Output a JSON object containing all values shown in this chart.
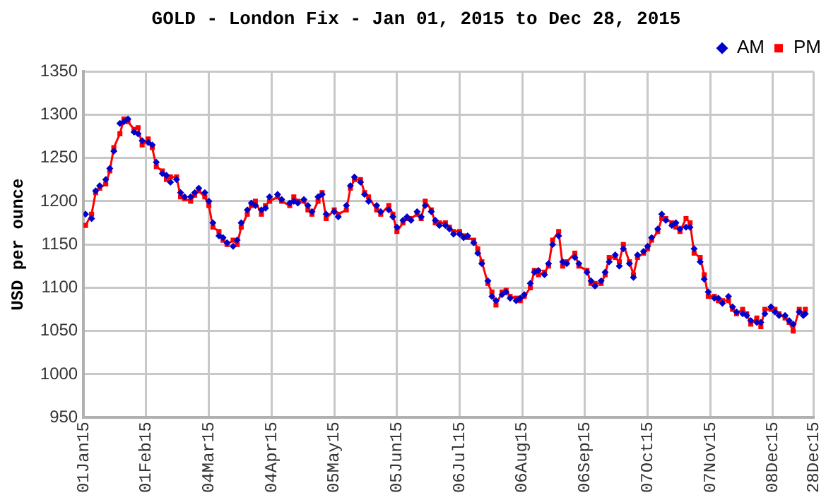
{
  "chart_data": {
    "type": "line",
    "title": "GOLD - London Fix - Jan 01, 2015 to Dec 28, 2015",
    "ylabel": "USD per ounce",
    "x": [
      "2015-01-02",
      "2015-01-05",
      "2015-01-07",
      "2015-01-09",
      "2015-01-12",
      "2015-01-14",
      "2015-01-16",
      "2015-01-19",
      "2015-01-21",
      "2015-01-23",
      "2015-01-26",
      "2015-01-28",
      "2015-01-30",
      "2015-02-02",
      "2015-02-04",
      "2015-02-06",
      "2015-02-09",
      "2015-02-11",
      "2015-02-13",
      "2015-02-16",
      "2015-02-18",
      "2015-02-20",
      "2015-02-23",
      "2015-02-25",
      "2015-02-27",
      "2015-03-02",
      "2015-03-04",
      "2015-03-06",
      "2015-03-09",
      "2015-03-11",
      "2015-03-13",
      "2015-03-16",
      "2015-03-18",
      "2015-03-20",
      "2015-03-23",
      "2015-03-25",
      "2015-03-27",
      "2015-03-30",
      "2015-04-01",
      "2015-04-03",
      "2015-04-07",
      "2015-04-09",
      "2015-04-13",
      "2015-04-15",
      "2015-04-17",
      "2015-04-20",
      "2015-04-22",
      "2015-04-24",
      "2015-04-27",
      "2015-04-29",
      "2015-05-01",
      "2015-05-05",
      "2015-05-07",
      "2015-05-11",
      "2015-05-13",
      "2015-05-15",
      "2015-05-18",
      "2015-05-20",
      "2015-05-22",
      "2015-05-26",
      "2015-05-28",
      "2015-06-01",
      "2015-06-03",
      "2015-06-05",
      "2015-06-08",
      "2015-06-10",
      "2015-06-12",
      "2015-06-15",
      "2015-06-17",
      "2015-06-19",
      "2015-06-22",
      "2015-06-24",
      "2015-06-26",
      "2015-06-29",
      "2015-07-01",
      "2015-07-03",
      "2015-07-06",
      "2015-07-08",
      "2015-07-10",
      "2015-07-13",
      "2015-07-15",
      "2015-07-17",
      "2015-07-20",
      "2015-07-22",
      "2015-07-24",
      "2015-07-27",
      "2015-07-29",
      "2015-07-31",
      "2015-08-03",
      "2015-08-05",
      "2015-08-07",
      "2015-08-10",
      "2015-08-12",
      "2015-08-14",
      "2015-08-17",
      "2015-08-19",
      "2015-08-21",
      "2015-08-24",
      "2015-08-26",
      "2015-08-28",
      "2015-09-01",
      "2015-09-03",
      "2015-09-07",
      "2015-09-09",
      "2015-09-11",
      "2015-09-14",
      "2015-09-16",
      "2015-09-18",
      "2015-09-21",
      "2015-09-23",
      "2015-09-25",
      "2015-09-28",
      "2015-09-30",
      "2015-10-02",
      "2015-10-05",
      "2015-10-07",
      "2015-10-09",
      "2015-10-12",
      "2015-10-14",
      "2015-10-16",
      "2015-10-19",
      "2015-10-21",
      "2015-10-23",
      "2015-10-26",
      "2015-10-28",
      "2015-10-30",
      "2015-11-02",
      "2015-11-04",
      "2015-11-06",
      "2015-11-09",
      "2015-11-11",
      "2015-11-13",
      "2015-11-16",
      "2015-11-18",
      "2015-11-20",
      "2015-11-23",
      "2015-11-25",
      "2015-11-27",
      "2015-11-30",
      "2015-12-02",
      "2015-12-04",
      "2015-12-07",
      "2015-12-09",
      "2015-12-11",
      "2015-12-14",
      "2015-12-16",
      "2015-12-18",
      "2015-12-21",
      "2015-12-23",
      "2015-12-24"
    ],
    "series": [
      {
        "name": "AM",
        "type": "scatter",
        "marker": "diamond",
        "color": "#0000cc",
        "values": [
          1185,
          1180,
          1212,
          1218,
          1225,
          1238,
          1258,
          1290,
          1292,
          1295,
          1280,
          1278,
          1270,
          1268,
          1265,
          1245,
          1232,
          1230,
          1222,
          1225,
          1210,
          1205,
          1205,
          1210,
          1215,
          1210,
          1200,
          1175,
          1160,
          1158,
          1152,
          1148,
          1155,
          1175,
          1190,
          1198,
          1195,
          1190,
          1192,
          1205,
          1208,
          1202,
          1198,
          1200,
          1198,
          1202,
          1195,
          1188,
          1205,
          1208,
          1185,
          1188,
          1182,
          1195,
          1218,
          1228,
          1222,
          1208,
          1200,
          1195,
          1188,
          1190,
          1182,
          1170,
          1178,
          1182,
          1178,
          1188,
          1182,
          1195,
          1188,
          1178,
          1172,
          1172,
          1168,
          1162,
          1162,
          1158,
          1160,
          1152,
          1140,
          1128,
          1108,
          1090,
          1085,
          1092,
          1095,
          1088,
          1085,
          1088,
          1092,
          1105,
          1118,
          1120,
          1115,
          1128,
          1150,
          1160,
          1130,
          1128,
          1135,
          1128,
          1118,
          1108,
          1102,
          1108,
          1118,
          1130,
          1138,
          1125,
          1145,
          1128,
          1112,
          1138,
          1142,
          1148,
          1158,
          1168,
          1185,
          1178,
          1172,
          1175,
          1168,
          1170,
          1170,
          1145,
          1130,
          1110,
          1095,
          1088,
          1088,
          1082,
          1090,
          1078,
          1072,
          1070,
          1068,
          1062,
          1060,
          1060,
          1070,
          1078,
          1072,
          1068,
          1068,
          1062,
          1058,
          1072,
          1068,
          1070
        ]
      },
      {
        "name": "PM",
        "type": "line",
        "marker": "square",
        "line_style": "solid",
        "color": "#ff0000",
        "values": [
          1172,
          1185,
          1210,
          1215,
          1220,
          1235,
          1262,
          1278,
          1295,
          1292,
          1283,
          1285,
          1265,
          1272,
          1262,
          1240,
          1235,
          1225,
          1228,
          1228,
          1205,
          1203,
          1200,
          1207,
          1212,
          1205,
          1195,
          1170,
          1165,
          1155,
          1150,
          1155,
          1150,
          1170,
          1185,
          1195,
          1200,
          1185,
          1195,
          1200,
          1205,
          1200,
          1195,
          1205,
          1200,
          1200,
          1190,
          1185,
          1200,
          1210,
          1180,
          1190,
          1185,
          1190,
          1215,
          1225,
          1225,
          1210,
          1205,
          1190,
          1185,
          1195,
          1185,
          1165,
          1175,
          1180,
          1180,
          1185,
          1180,
          1200,
          1190,
          1175,
          1175,
          1175,
          1170,
          1165,
          1165,
          1160,
          1158,
          1155,
          1145,
          1130,
          1105,
          1095,
          1080,
          1095,
          1097,
          1090,
          1088,
          1085,
          1090,
          1100,
          1120,
          1115,
          1118,
          1125,
          1155,
          1165,
          1125,
          1130,
          1140,
          1125,
          1120,
          1105,
          1105,
          1105,
          1115,
          1135,
          1135,
          1130,
          1150,
          1130,
          1115,
          1135,
          1140,
          1145,
          1155,
          1165,
          1180,
          1180,
          1175,
          1170,
          1165,
          1180,
          1175,
          1140,
          1135,
          1115,
          1090,
          1090,
          1085,
          1085,
          1085,
          1075,
          1070,
          1075,
          1070,
          1058,
          1065,
          1055,
          1075,
          1075,
          1075,
          1070,
          1065,
          1060,
          1050,
          1075,
          1070,
          1075
        ]
      }
    ],
    "xlim": [
      "2015-01-01",
      "2015-12-28"
    ],
    "xticks": [
      {
        "value": "2015-01-01",
        "label": "01Jan15"
      },
      {
        "value": "2015-02-01",
        "label": "01Feb15"
      },
      {
        "value": "2015-03-04",
        "label": "04Mar15"
      },
      {
        "value": "2015-04-04",
        "label": "04Apr15"
      },
      {
        "value": "2015-05-05",
        "label": "05May15"
      },
      {
        "value": "2015-06-05",
        "label": "05Jun15"
      },
      {
        "value": "2015-07-06",
        "label": "06Jul15"
      },
      {
        "value": "2015-08-06",
        "label": "06Aug15"
      },
      {
        "value": "2015-09-06",
        "label": "06Sep15"
      },
      {
        "value": "2015-10-07",
        "label": "07Oct15"
      },
      {
        "value": "2015-11-07",
        "label": "07Nov15"
      },
      {
        "value": "2015-12-08",
        "label": "08Dec15"
      },
      {
        "value": "2015-12-28",
        "label": "28Dec15"
      }
    ],
    "ylim": [
      950,
      1350
    ],
    "yticks": [
      950,
      1000,
      1050,
      1100,
      1150,
      1200,
      1250,
      1300,
      1350
    ],
    "grid": true,
    "legend": "top right"
  }
}
